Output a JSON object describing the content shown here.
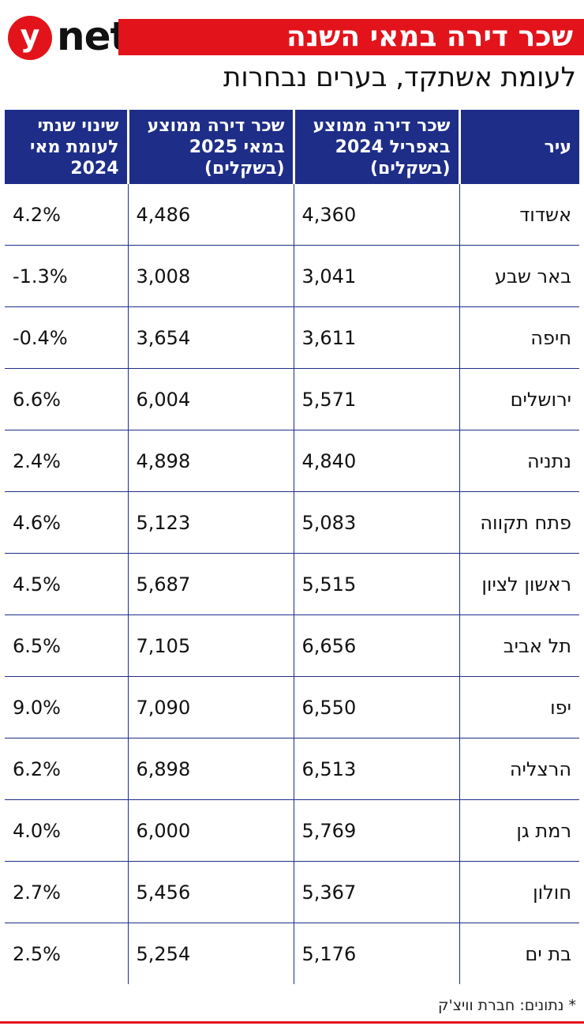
{
  "brand": {
    "logo_letter": "y",
    "logo_text": "net",
    "accent_color": "#e3131b",
    "header_color": "#1e2d87"
  },
  "title": "שכר דירה במאי השנה",
  "subtitle": "לעומת אשתקד, בערים נבחרות",
  "footer": "* נתונים: חברת וויצ'ק",
  "chart_data": {
    "type": "table",
    "columns": [
      "עיר",
      "שכר דירה ממוצע באפריל 2024 (בשקלים)",
      "שכר דירה ממוצע במאי 2025 (בשקלים)",
      "שינוי שנתי לעומת מאי 2024"
    ],
    "rows": [
      {
        "city": "אשדוד",
        "apr2024": "4,360",
        "may2025": "4,486",
        "change": "4.2%"
      },
      {
        "city": "באר שבע",
        "apr2024": "3,041",
        "may2025": "3,008",
        "change": "-1.3%"
      },
      {
        "city": "חיפה",
        "apr2024": "3,611",
        "may2025": "3,654",
        "change": "-0.4%"
      },
      {
        "city": "ירושלים",
        "apr2024": "5,571",
        "may2025": "6,004",
        "change": "6.6%"
      },
      {
        "city": "נתניה",
        "apr2024": "4,840",
        "may2025": "4,898",
        "change": "2.4%"
      },
      {
        "city": "פתח תקווה",
        "apr2024": "5,083",
        "may2025": "5,123",
        "change": "4.6%"
      },
      {
        "city": "ראשון לציון",
        "apr2024": "5,515",
        "may2025": "5,687",
        "change": "4.5%"
      },
      {
        "city": "תל אביב",
        "apr2024": "6,656",
        "may2025": "7,105",
        "change": "6.5%"
      },
      {
        "city": "יפו",
        "apr2024": "6,550",
        "may2025": "7,090",
        "change": "9.0%"
      },
      {
        "city": "הרצליה",
        "apr2024": "6,513",
        "may2025": "6,898",
        "change": "6.2%"
      },
      {
        "city": "רמת גן",
        "apr2024": "5,769",
        "may2025": "6,000",
        "change": "4.0%"
      },
      {
        "city": "חולון",
        "apr2024": "5,367",
        "may2025": "5,456",
        "change": "2.7%"
      },
      {
        "city": "בת ים",
        "apr2024": "5,176",
        "may2025": "5,254",
        "change": "2.5%"
      }
    ]
  }
}
